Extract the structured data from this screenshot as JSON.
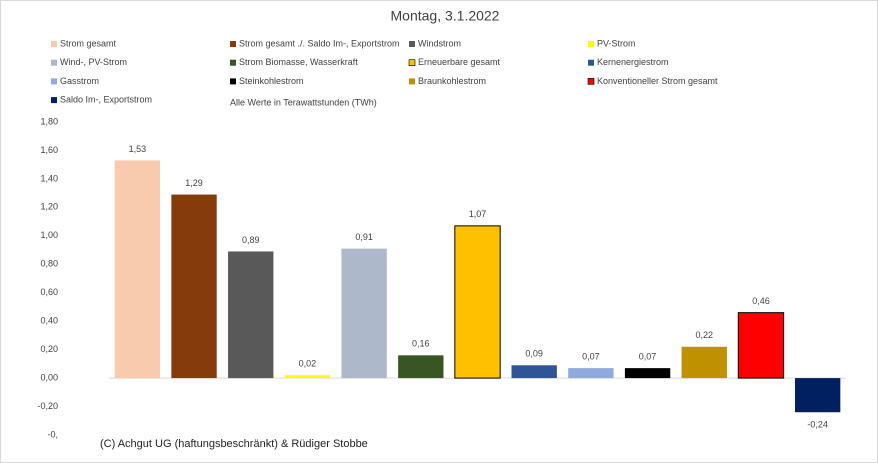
{
  "chart_data": {
    "type": "bar",
    "title": "Montag,  3.1.2022",
    "subtitle": "Alle Werte in Terawattstunden (TWh)",
    "annotation": "(C) Achgut UG (haftungsbeschränkt) & Rüdiger Stobbe",
    "categories": [
      null
    ],
    "ylim": [
      -0.4,
      1.8
    ],
    "yticks": [
      {
        "value": -0.4,
        "label": "-0,"
      },
      {
        "value": -0.2,
        "label": "-0,20"
      },
      {
        "value": 0,
        "label": "0,00"
      },
      {
        "value": 0.2,
        "label": "0,20"
      },
      {
        "value": 0.4,
        "label": "0,40"
      },
      {
        "value": 0.6,
        "label": "0,60"
      },
      {
        "value": 0.8,
        "label": "0,80"
      },
      {
        "value": 1.0,
        "label": "1,00"
      },
      {
        "value": 1.2,
        "label": "1,20"
      },
      {
        "value": 1.4,
        "label": "1,40"
      },
      {
        "value": 1.6,
        "label": "1,60"
      },
      {
        "value": 1.8,
        "label": "1,80"
      }
    ],
    "grid": false,
    "series": [
      {
        "name": "Strom gesamt",
        "color": "#f8cbad",
        "values": [
          1.53
        ],
        "value_labels": [
          "1,53"
        ]
      },
      {
        "name": "Strom gesamt ./. Saldo Im-, Exportstrom",
        "color": "#843c0c",
        "values": [
          1.29
        ],
        "value_labels": [
          "1,29"
        ]
      },
      {
        "name": "Windstrom",
        "color": "#595959",
        "values": [
          0.89
        ],
        "value_labels": [
          "0,89"
        ]
      },
      {
        "name": "PV-Strom",
        "color": "#ffff00",
        "values": [
          0.02
        ],
        "value_labels": [
          "0,02"
        ]
      },
      {
        "name": "Wind-, PV-Strom",
        "color": "#adb9ca",
        "values": [
          0.91
        ],
        "value_labels": [
          "0,91"
        ]
      },
      {
        "name": "Strom Biomasse, Wasserkraft",
        "color": "#375623",
        "values": [
          0.16
        ],
        "value_labels": [
          "0,16"
        ]
      },
      {
        "name": "Erneuerbare gesamt",
        "color": "#ffc000",
        "edgecolor": "#000000",
        "values": [
          1.07
        ],
        "value_labels": [
          "1,07"
        ]
      },
      {
        "name": "Kernenergiestrom",
        "color": "#2f5597",
        "values": [
          0.09
        ],
        "value_labels": [
          "0,09"
        ]
      },
      {
        "name": "Gasstrom",
        "color": "#8faadc",
        "values": [
          0.07
        ],
        "value_labels": [
          "0,07"
        ]
      },
      {
        "name": "Steinkohlestrom",
        "color": "#000000",
        "values": [
          0.07
        ],
        "value_labels": [
          "0,07"
        ]
      },
      {
        "name": "Braunkohlestrom",
        "color": "#bf9000",
        "values": [
          0.22
        ],
        "value_labels": [
          "0,22"
        ]
      },
      {
        "name": "Konventioneller Strom gesamt",
        "color": "#ff0000",
        "edgecolor": "#000000",
        "values": [
          0.46
        ],
        "value_labels": [
          "0,46"
        ]
      },
      {
        "name": "Saldo Im-, Exportstrom",
        "color": "#002060",
        "values": [
          -0.24
        ],
        "value_labels": [
          "-0,24"
        ]
      }
    ]
  }
}
